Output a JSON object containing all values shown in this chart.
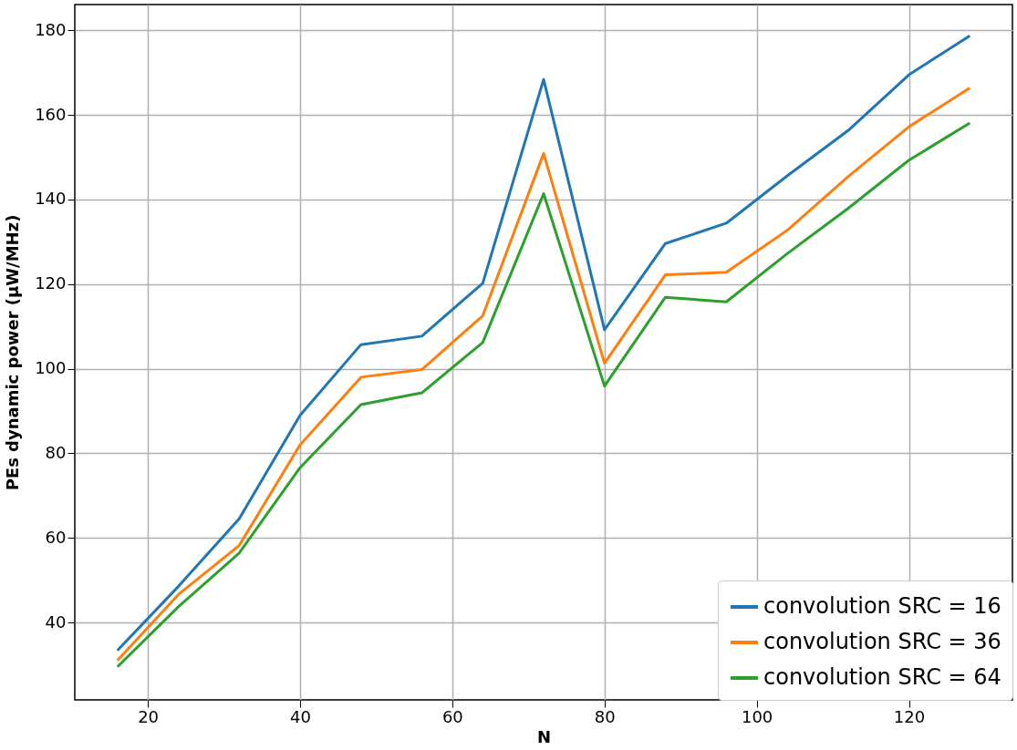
{
  "chart_data": {
    "type": "line",
    "xlabel": "N",
    "ylabel": "PEs dynamic power (µW/MHz)",
    "x": [
      16,
      24,
      32,
      40,
      48,
      56,
      64,
      72,
      80,
      88,
      96,
      104,
      112,
      120,
      128
    ],
    "series": [
      {
        "name": " convolution SRC = 16",
        "color": "#1f77b4",
        "values": [
          33.4,
          48.5,
          64.5,
          89,
          105.7,
          107.7,
          120.2,
          168.4,
          109.2,
          129.6,
          134.4,
          145.6,
          156.3,
          169.5,
          178.7
        ]
      },
      {
        "name": "convolution SRC = 36",
        "color": "#ff7f0e",
        "values": [
          31,
          46.6,
          58.2,
          82,
          98,
          99.8,
          112.5,
          150.9,
          101.3,
          122.2,
          122.8,
          132.7,
          145.4,
          157.2,
          166.4
        ]
      },
      {
        "name": "convolution SRC = 64",
        "color": "#2ca02c",
        "values": [
          29.5,
          43.7,
          56.4,
          76.6,
          91.5,
          94.3,
          106.2,
          141.4,
          95.9,
          116.9,
          115.8,
          127.2,
          137.9,
          149.3,
          158.1
        ]
      }
    ],
    "xlim": [
      10.4,
      133.6
    ],
    "ylim": [
      21.7,
      186.1
    ],
    "xticks": [
      20,
      40,
      60,
      80,
      100,
      120
    ],
    "yticks": [
      40,
      60,
      80,
      100,
      120,
      140,
      160,
      180
    ],
    "grid": true,
    "legend": "bottom right",
    "line_style": "solid",
    "marker": "none"
  }
}
